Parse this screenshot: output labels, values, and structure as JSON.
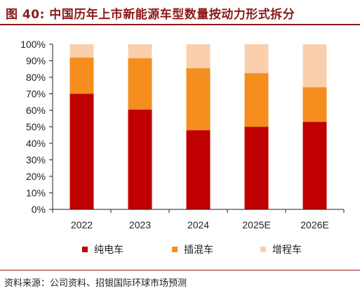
{
  "title": "图 40: 中国历年上市新能源车型数量按动力形式拆分",
  "source": "资料来源：公司资料、招银国际环球市场预测",
  "chart_data": {
    "type": "bar",
    "stacked": true,
    "categories": [
      "2022",
      "2023",
      "2024",
      "2025E",
      "2026E"
    ],
    "series": [
      {
        "name": "纯电车",
        "color": "#c00000",
        "values": [
          70,
          60.5,
          48,
          50,
          53
        ]
      },
      {
        "name": "插混车",
        "color": "#f58e1f",
        "values": [
          22,
          31,
          37.5,
          32.5,
          21
        ]
      },
      {
        "name": "增程车",
        "color": "#f9cfae",
        "values": [
          8,
          8.5,
          14.5,
          17.5,
          26
        ]
      }
    ],
    "yticks": [
      "0%",
      "10%",
      "20%",
      "30%",
      "40%",
      "50%",
      "60%",
      "70%",
      "80%",
      "90%",
      "100%"
    ],
    "ylim": [
      0,
      100
    ],
    "legend_position": "bottom",
    "grid": false
  }
}
